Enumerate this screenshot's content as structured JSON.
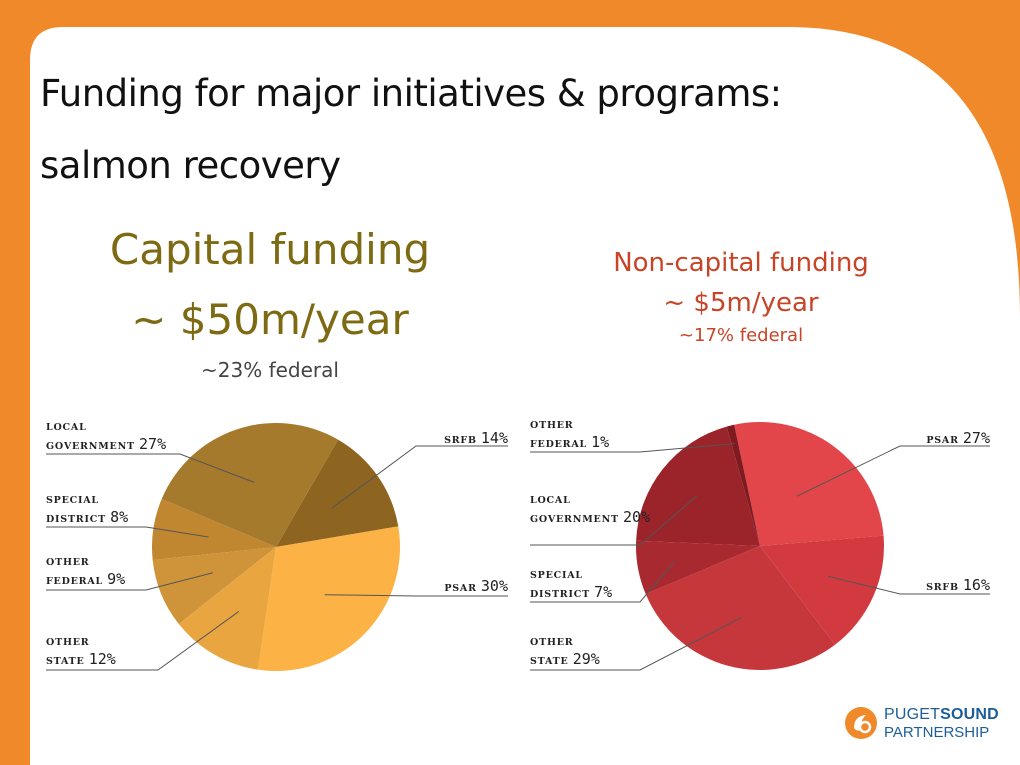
{
  "slide": {
    "title_line1": "Funding for major initiatives & programs:",
    "title_line2": "salmon recovery"
  },
  "capital": {
    "heading": "Capital funding",
    "amount": "~ $50m/year",
    "federal_note": "~23% federal"
  },
  "noncapital": {
    "heading": "Non-capital funding",
    "amount": "~ $5m/year",
    "federal_note": "~17% federal"
  },
  "colors": {
    "frame_orange": "#f0892a",
    "capital_heading": "#7d6a12",
    "noncapital_heading": "#c94426",
    "logo_blue": "#1c5e98"
  },
  "logo": {
    "word1": "PUGET",
    "word2": "SOUND",
    "line2": "PARTNERSHIP"
  },
  "chart_data": [
    {
      "type": "pie",
      "title": "",
      "slices": [
        {
          "name": "SRFB",
          "label_lines": [
            "SRFB"
          ],
          "value": 14,
          "display": "14%",
          "color": "#8d6520"
        },
        {
          "name": "PSAR",
          "label_lines": [
            "PSAR"
          ],
          "value": 30,
          "display": "30%",
          "color": "#fcb244"
        },
        {
          "name": "OTHER STATE",
          "label_lines": [
            "OTHER",
            "STATE"
          ],
          "value": 12,
          "display": "12%",
          "color": "#e9a540"
        },
        {
          "name": "OTHER FEDERAL",
          "label_lines": [
            "OTHER",
            "FEDERAL"
          ],
          "value": 9,
          "display": "9%",
          "color": "#cf943a"
        },
        {
          "name": "SPECIAL DISTRICT",
          "label_lines": [
            "SPECIAL",
            "DISTRICT"
          ],
          "value": 8,
          "display": "8%",
          "color": "#c18730"
        },
        {
          "name": "LOCAL GOVERNMENT",
          "label_lines": [
            "LOCAL",
            "GOVERNMENT"
          ],
          "value": 27,
          "display": "27%",
          "color": "#a67a2c"
        }
      ]
    },
    {
      "type": "pie",
      "title": "",
      "slices": [
        {
          "name": "PSAR",
          "label_lines": [
            "PSAR"
          ],
          "value": 27,
          "display": "27%",
          "color": "#e2454a"
        },
        {
          "name": "SRFB",
          "label_lines": [
            "SRFB"
          ],
          "value": 16,
          "display": "16%",
          "color": "#d23a40"
        },
        {
          "name": "OTHER STATE",
          "label_lines": [
            "OTHER",
            "STATE"
          ],
          "value": 29,
          "display": "29%",
          "color": "#c6373c"
        },
        {
          "name": "SPECIAL DISTRICT",
          "label_lines": [
            "SPECIAL",
            "DISTRICT"
          ],
          "value": 7,
          "display": "7%",
          "color": "#a82a30"
        },
        {
          "name": "LOCAL GOVERNMENT",
          "label_lines": [
            "LOCAL",
            "GOVERNMENT"
          ],
          "value": 20,
          "display": "20%",
          "color": "#9a2429"
        },
        {
          "name": "OTHER FEDERAL",
          "label_lines": [
            "OTHER",
            "FEDERAL"
          ],
          "value": 1,
          "display": "1%",
          "color": "#7e1a20"
        }
      ]
    }
  ]
}
